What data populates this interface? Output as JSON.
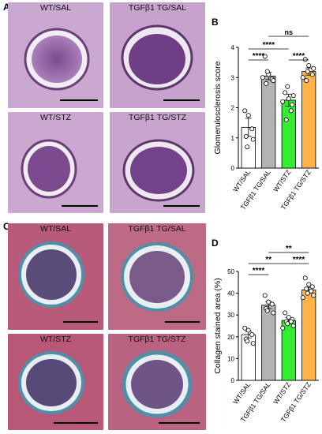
{
  "panels": {
    "A": {
      "letter": "A",
      "images": [
        {
          "label": "WT/SAL"
        },
        {
          "label": "TGFβ1 TG/SAL"
        },
        {
          "label": "WT/STZ"
        },
        {
          "label": "TGFβ1 TG/STZ"
        }
      ]
    },
    "C": {
      "letter": "C",
      "images": [
        {
          "label": "WT/SAL"
        },
        {
          "label": "TGFβ1 TG/SAL"
        },
        {
          "label": "WT/STZ"
        },
        {
          "label": "TGFβ1 TG/STZ"
        }
      ]
    }
  },
  "chart_data": [
    {
      "panel": "B",
      "type": "bar",
      "ylabel": "Glomerulosclerosis score",
      "ylim": [
        0,
        4
      ],
      "yticks": [
        "0",
        "1",
        "2",
        "3",
        "4"
      ],
      "categories": [
        "WT/SAL",
        "TGFβ1 TG/SAL",
        "WT/STZ",
        "TGFβ1 TG/STZ"
      ],
      "colors": [
        "#ffffff",
        "#b3b3b3",
        "#33ee33",
        "#ffb347"
      ],
      "values": [
        1.35,
        3.05,
        2.25,
        3.2
      ],
      "errors": [
        0.3,
        0.12,
        0.2,
        0.12
      ],
      "points": [
        [
          1.9,
          1.75,
          1.3,
          1.05,
          0.7,
          0.95
        ],
        [
          3.7,
          3.1,
          2.95,
          2.8,
          3.2,
          2.9,
          3.0
        ],
        [
          2.5,
          2.3,
          2.1,
          1.6,
          2.7,
          2.4,
          2.2,
          1.9
        ],
        [
          3.6,
          3.4,
          3.1,
          2.9,
          3.2,
          3.3,
          3.0
        ]
      ],
      "significance": [
        {
          "from": 0,
          "to": 1,
          "label": "****"
        },
        {
          "from": 0,
          "to": 2,
          "label": "****"
        },
        {
          "from": 2,
          "to": 3,
          "label": "****"
        },
        {
          "from": 1,
          "to": 3,
          "label": "ns"
        }
      ]
    },
    {
      "panel": "D",
      "type": "bar",
      "ylabel": "Collagen stained area (%)",
      "ylim": [
        0,
        50
      ],
      "yticks": [
        "0",
        "10",
        "20",
        "30",
        "40",
        "50"
      ],
      "categories": [
        "WT/SAL",
        "TGFβ1 TG/SAL",
        "WT/STZ",
        "TGFβ1 TG/STZ"
      ],
      "colors": [
        "#ffffff",
        "#b3b3b3",
        "#33ee33",
        "#ffb347"
      ],
      "values": [
        21,
        34.5,
        27.5,
        41.5
      ],
      "errors": [
        1.5,
        1.5,
        1.3,
        1.2
      ],
      "points": [
        [
          24,
          23,
          21,
          19,
          18,
          17
        ],
        [
          39,
          36,
          35,
          33,
          32,
          31
        ],
        [
          31,
          29,
          28,
          27,
          26,
          25,
          24,
          27
        ],
        [
          47,
          44,
          43,
          42,
          40,
          39,
          38,
          41
        ]
      ],
      "significance": [
        {
          "from": 0,
          "to": 1,
          "label": "****"
        },
        {
          "from": 0,
          "to": 2,
          "label": "**"
        },
        {
          "from": 2,
          "to": 3,
          "label": "****"
        },
        {
          "from": 1,
          "to": 3,
          "label": "**"
        }
      ]
    }
  ]
}
